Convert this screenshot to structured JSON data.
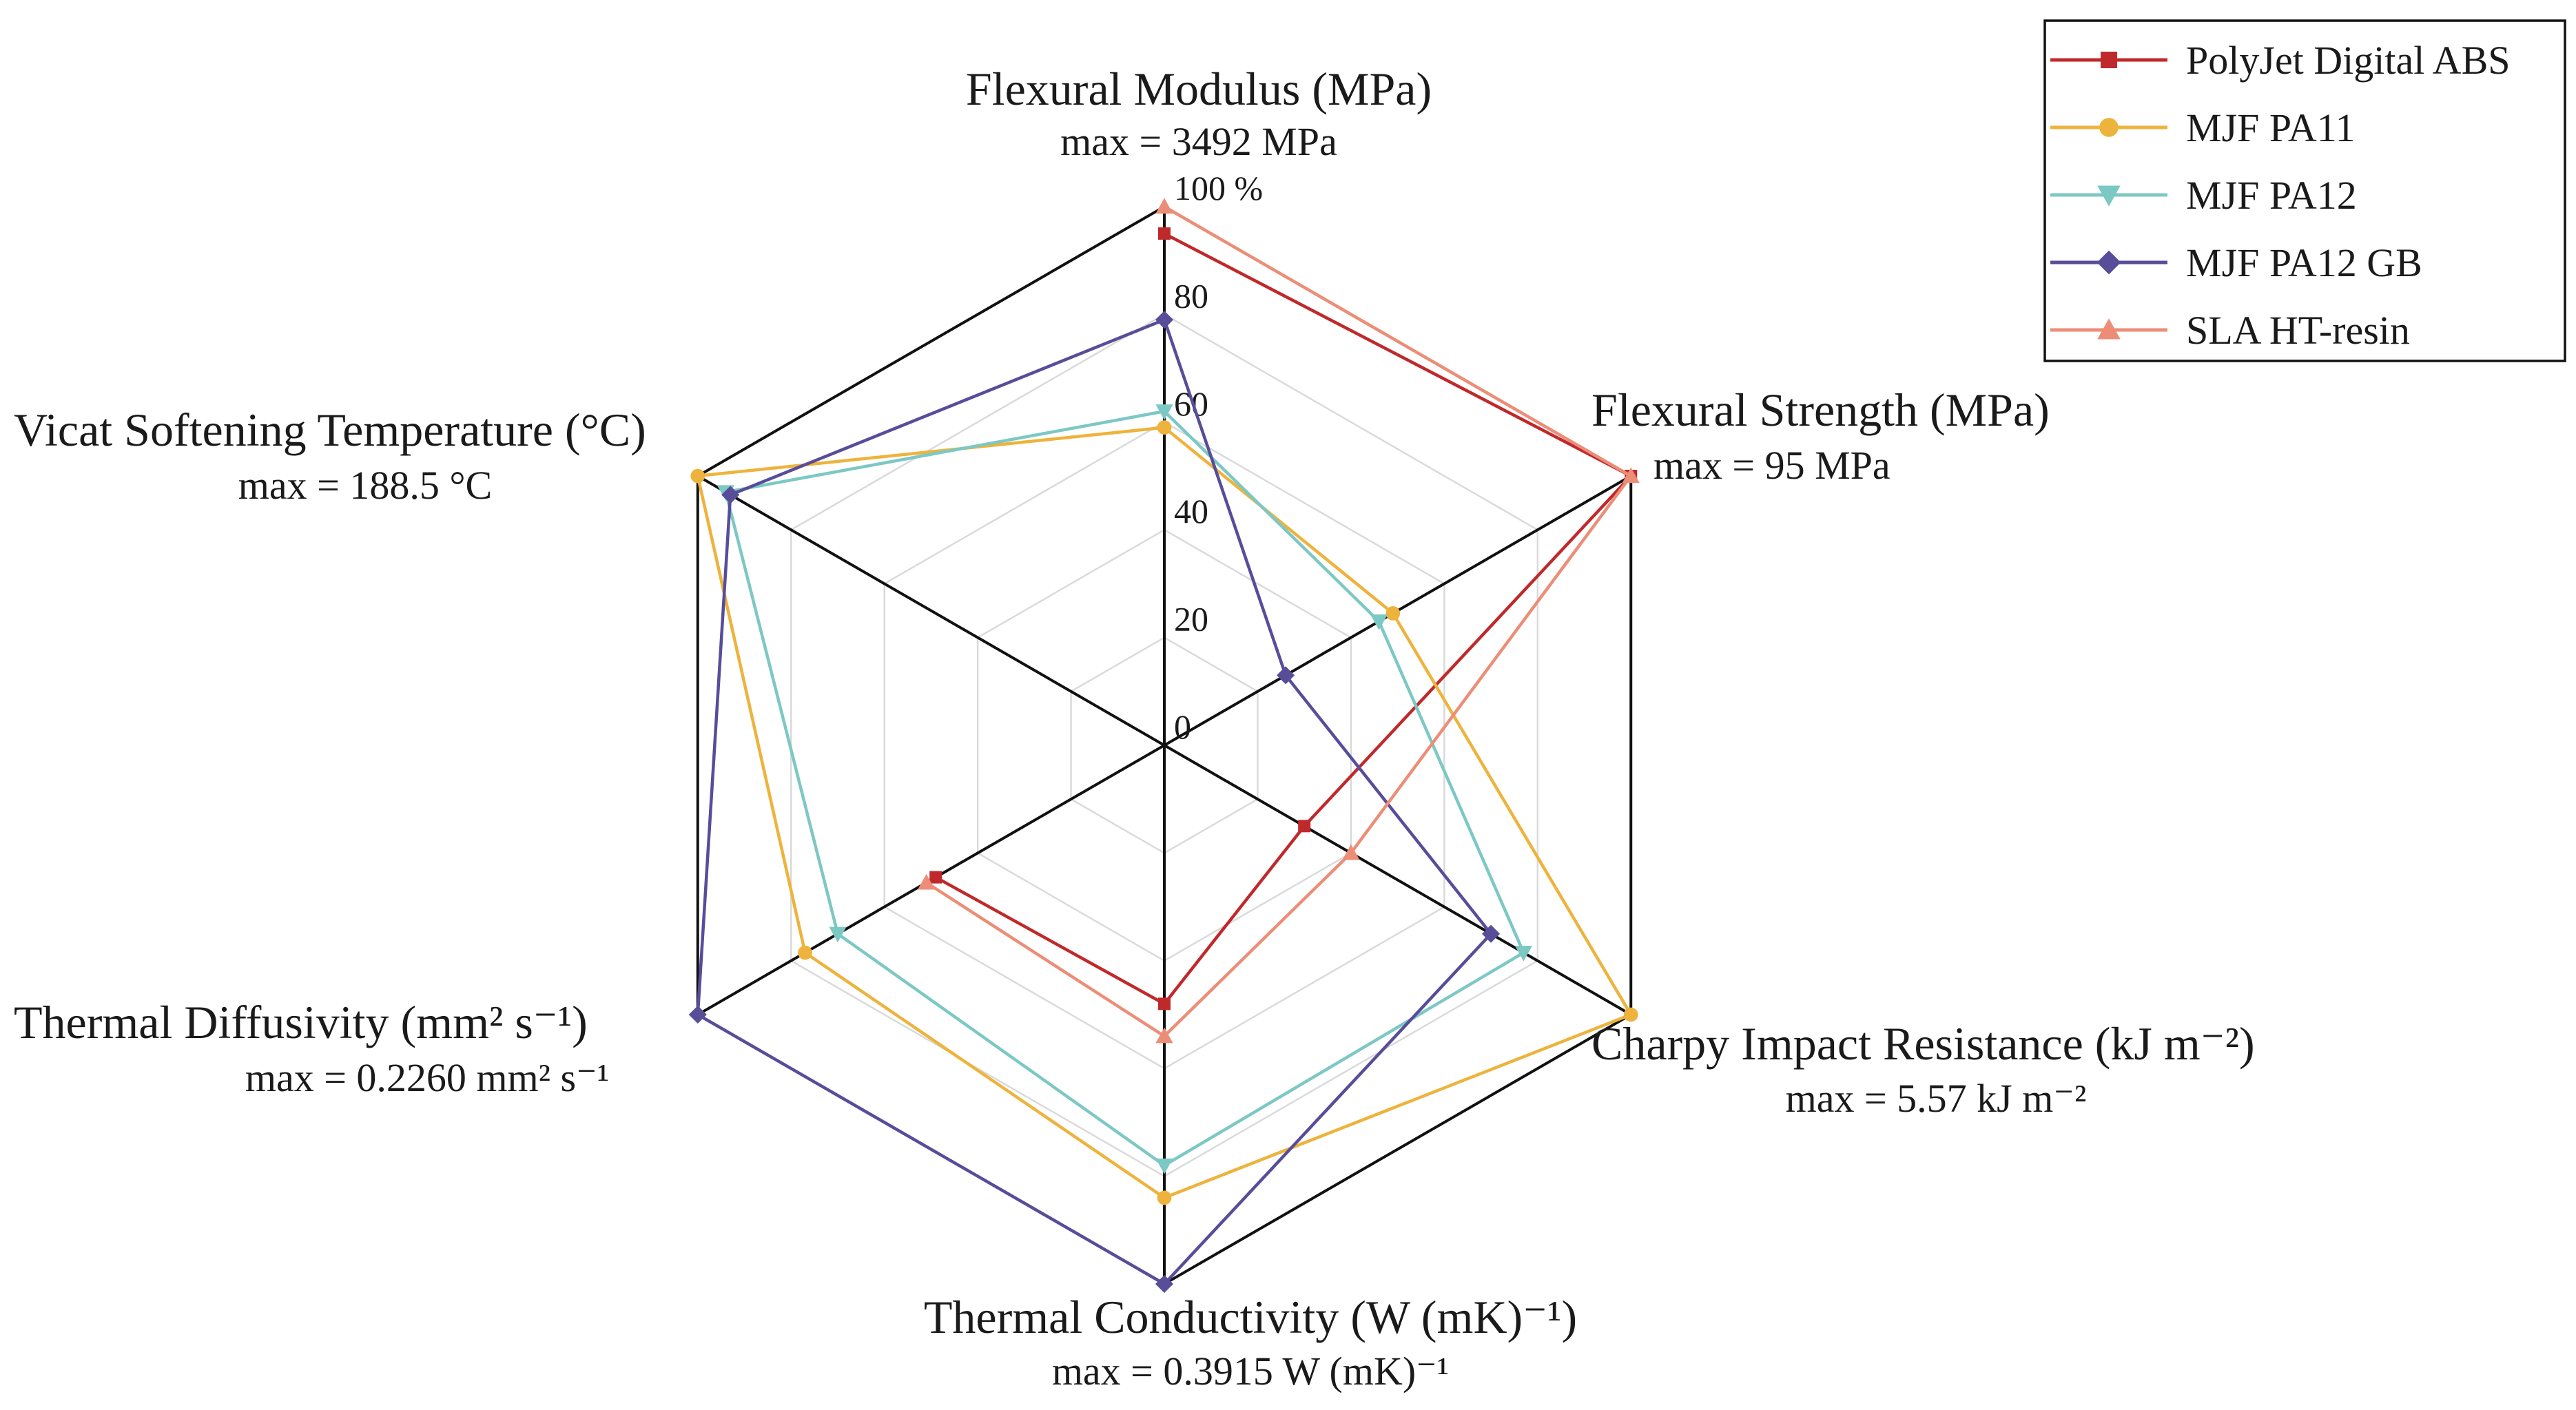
{
  "chart_data": {
    "type": "radar",
    "unit_suffix": "%",
    "rlim": [
      0,
      100
    ],
    "ticks": [
      "0",
      "20",
      "40",
      "60",
      "80",
      "100 %"
    ],
    "axes": [
      {
        "name": "Flexural Modulus (MPa)",
        "max_label": "max = 3492 MPa"
      },
      {
        "name": "Flexural Strength (MPa)",
        "max_label": "max = 95 MPa"
      },
      {
        "name": "Charpy Impact Resistance (kJ m⁻²)",
        "max_label": "max = 5.57 kJ m⁻²"
      },
      {
        "name": "Thermal Conductivity (W (mK)⁻¹)",
        "max_label": "max = 0.3915 W (mK)⁻¹"
      },
      {
        "name": "Thermal Diffusivity (mm² s⁻¹)",
        "max_label": "max = 0.2260 mm² s⁻¹"
      },
      {
        "name": "Vicat Softening Temperature (°C)",
        "max_label": "max = 188.5 °C"
      }
    ],
    "series": [
      {
        "name": "PolyJet Digital ABS",
        "color": "#c0292b",
        "marker": "square",
        "values": [
          95,
          100,
          30,
          48,
          49,
          null
        ]
      },
      {
        "name": "MJF PA11",
        "color": "#eeb33c",
        "marker": "circle",
        "values": [
          59,
          49,
          100,
          84,
          77,
          100
        ]
      },
      {
        "name": "MJF PA12",
        "color": "#7cc8c4",
        "marker": "triangle-down",
        "values": [
          62,
          46,
          77,
          78,
          70,
          94
        ]
      },
      {
        "name": "MJF PA12 GB",
        "color": "#574d99",
        "marker": "diamond",
        "values": [
          79,
          26,
          70,
          100,
          100,
          93
        ]
      },
      {
        "name": "SLA HT-resin",
        "color": "#ec8e77",
        "marker": "triangle-up",
        "values": [
          100,
          100,
          40,
          54,
          51,
          null
        ]
      }
    ]
  }
}
